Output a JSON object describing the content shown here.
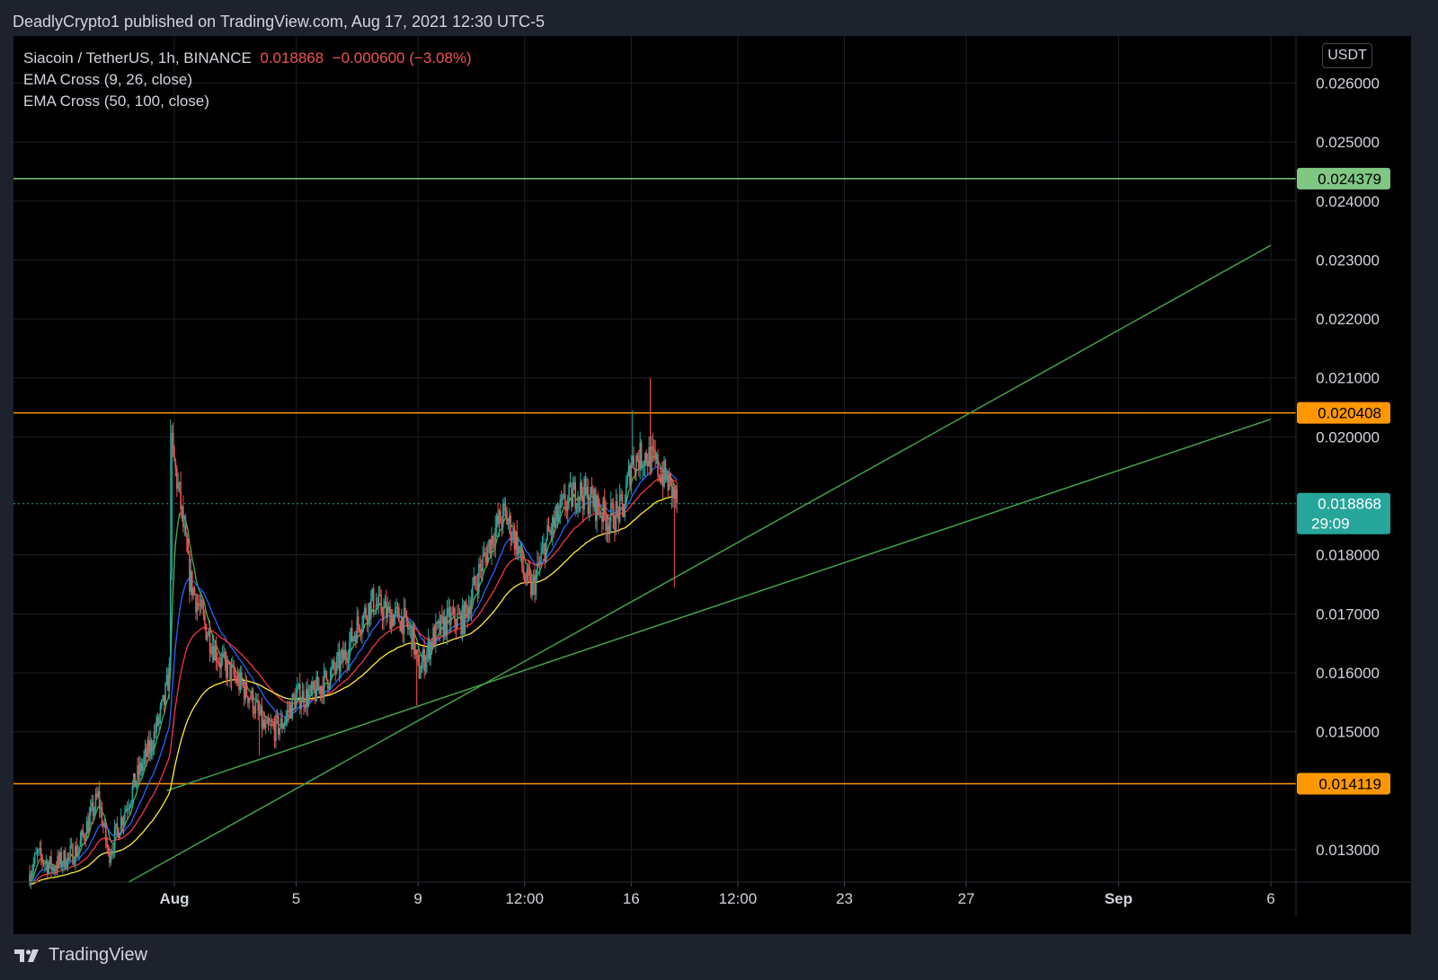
{
  "publisher": "DeadlyCrypto1 published on TradingView.com, Aug 17, 2021 12:30 UTC-5",
  "legend": {
    "symbol": "Siacoin / TetherUS, 1h, BINANCE",
    "price": "0.018868",
    "change": "−0.000600 (−3.08%)",
    "ema1": "EMA Cross (9, 26, close)",
    "ema2": "EMA Cross (50, 100, close)"
  },
  "currency": "USDT",
  "brand": "TradingView",
  "colors": {
    "background": "#000000",
    "up": "#26a69a",
    "down": "#ef5350",
    "ema9": "#4caf50",
    "ema26": "#2962ff",
    "ema50": "#f23645",
    "ema100": "#ffeb3b",
    "orange_level": "#ff9800",
    "green_level": "#81c784",
    "trendline": "#43a047",
    "current_price": "#26a69a"
  },
  "chart_data": {
    "type": "candlestick",
    "symbol": "Siacoin / TetherUS",
    "interval": "1h",
    "exchange": "BINANCE",
    "ylim": [
      0.01245,
      0.0268
    ],
    "yticks": [
      "0.026000",
      "0.025000",
      "0.024000",
      "0.023000",
      "0.022000",
      "0.021000",
      "0.020000",
      "0.018000",
      "0.017000",
      "0.016000",
      "0.015000",
      "0.013000"
    ],
    "xticks": [
      {
        "label": "Aug",
        "t": "2021-08-01T00:00",
        "bold": true
      },
      {
        "label": "5",
        "t": "2021-08-05T00:00"
      },
      {
        "label": "9",
        "t": "2021-08-09T00:00"
      },
      {
        "label": "12:00",
        "t": "2021-08-12T12:00"
      },
      {
        "label": "16",
        "t": "2021-08-16T00:00"
      },
      {
        "label": "12:00",
        "t": "2021-08-19T12:00"
      },
      {
        "label": "23",
        "t": "2021-08-23T00:00"
      },
      {
        "label": "27",
        "t": "2021-08-27T00:00"
      },
      {
        "label": "Sep",
        "t": "2021-09-01T00:00",
        "bold": true
      },
      {
        "label": "6",
        "t": "2021-09-06T00:00"
      }
    ],
    "time_range": [
      "2021-07-27T06:00",
      "2021-09-06T00:00"
    ],
    "price_path": [
      [
        "2021-07-27T06:00",
        0.0126
      ],
      [
        "2021-07-27T12:00",
        0.0129
      ],
      [
        "2021-07-28T00:00",
        0.0127
      ],
      [
        "2021-07-28T20:00",
        0.013
      ],
      [
        "2021-07-29T12:00",
        0.0139
      ],
      [
        "2021-07-29T20:00",
        0.0129
      ],
      [
        "2021-07-30T06:00",
        0.0135
      ],
      [
        "2021-07-30T18:00",
        0.0142
      ],
      [
        "2021-07-31T06:00",
        0.0148
      ],
      [
        "2021-07-31T16:00",
        0.0155
      ],
      [
        "2021-07-31T20:00",
        0.016
      ],
      [
        "2021-07-31T22:00",
        0.0198
      ],
      [
        "2021-08-01T04:00",
        0.019
      ],
      [
        "2021-08-01T12:00",
        0.0176
      ],
      [
        "2021-08-02T00:00",
        0.0168
      ],
      [
        "2021-08-02T12:00",
        0.0162
      ],
      [
        "2021-08-03T00:00",
        0.0159
      ],
      [
        "2021-08-03T12:00",
        0.0156
      ],
      [
        "2021-08-04T00:00",
        0.015
      ],
      [
        "2021-08-04T12:00",
        0.0151
      ],
      [
        "2021-08-05T00:00",
        0.0156
      ],
      [
        "2021-08-05T12:00",
        0.0156
      ],
      [
        "2021-08-06T00:00",
        0.0159
      ],
      [
        "2021-08-06T12:00",
        0.0162
      ],
      [
        "2021-08-07T00:00",
        0.0168
      ],
      [
        "2021-08-07T12:00",
        0.0172
      ],
      [
        "2021-08-08T00:00",
        0.017
      ],
      [
        "2021-08-08T12:00",
        0.0169
      ],
      [
        "2021-08-08T20:00",
        0.0166
      ],
      [
        "2021-08-09T00:00",
        0.016
      ],
      [
        "2021-08-09T12:00",
        0.0166
      ],
      [
        "2021-08-10T00:00",
        0.0169
      ],
      [
        "2021-08-10T12:00",
        0.0169
      ],
      [
        "2021-08-11T00:00",
        0.0177
      ],
      [
        "2021-08-11T12:00",
        0.0184
      ],
      [
        "2021-08-11T20:00",
        0.0187
      ],
      [
        "2021-08-12T06:00",
        0.0182
      ],
      [
        "2021-08-12T12:00",
        0.0176
      ],
      [
        "2021-08-12T18:00",
        0.0174
      ],
      [
        "2021-08-13T06:00",
        0.0183
      ],
      [
        "2021-08-13T18:00",
        0.0188
      ],
      [
        "2021-08-14T06:00",
        0.0191
      ],
      [
        "2021-08-14T18:00",
        0.0189
      ],
      [
        "2021-08-15T06:00",
        0.0186
      ],
      [
        "2021-08-15T18:00",
        0.0188
      ],
      [
        "2021-08-16T00:00",
        0.0196
      ],
      [
        "2021-08-16T12:00",
        0.0197
      ],
      [
        "2021-08-16T20:00",
        0.0195
      ],
      [
        "2021-08-17T06:00",
        0.0192
      ],
      [
        "2021-08-17T12:00",
        0.01887
      ]
    ],
    "spikes": [
      {
        "t": "2021-07-31T21:00",
        "high": 0.0203
      },
      {
        "t": "2021-08-16T01:00",
        "high": 0.02045
      },
      {
        "t": "2021-08-16T15:00",
        "high": 0.021
      },
      {
        "t": "2021-08-17T10:00",
        "low": 0.01745
      },
      {
        "t": "2021-08-08T23:00",
        "low": 0.01545
      },
      {
        "t": "2021-08-03T19:00",
        "low": 0.0146
      }
    ],
    "indicators": [
      {
        "name": "EMA Cross (9, 26, close)",
        "lengths": [
          9,
          26
        ]
      },
      {
        "name": "EMA Cross (50, 100, close)",
        "lengths": [
          50,
          100
        ]
      }
    ],
    "horizontal_levels": [
      {
        "price": "0.024379",
        "color": "green_level",
        "label_bg": "#81c784",
        "label_color": "#000000"
      },
      {
        "price": "0.020408",
        "color": "orange_level",
        "label_bg": "#ff9800",
        "label_color": "#000000"
      },
      {
        "price": "0.014119",
        "color": "orange_level",
        "label_bg": "#ff9800",
        "label_color": "#000000"
      }
    ],
    "trendlines": [
      {
        "p1": [
          "2021-07-30T12:00",
          0.01245
        ],
        "p2": [
          "2021-09-06T00:00",
          0.02325
        ]
      },
      {
        "p1": [
          "2021-07-31T18:00",
          0.014
        ],
        "p2": [
          "2021-09-06T00:00",
          0.0203
        ]
      }
    ],
    "current": {
      "price": "0.018868",
      "countdown": "29:09"
    }
  }
}
